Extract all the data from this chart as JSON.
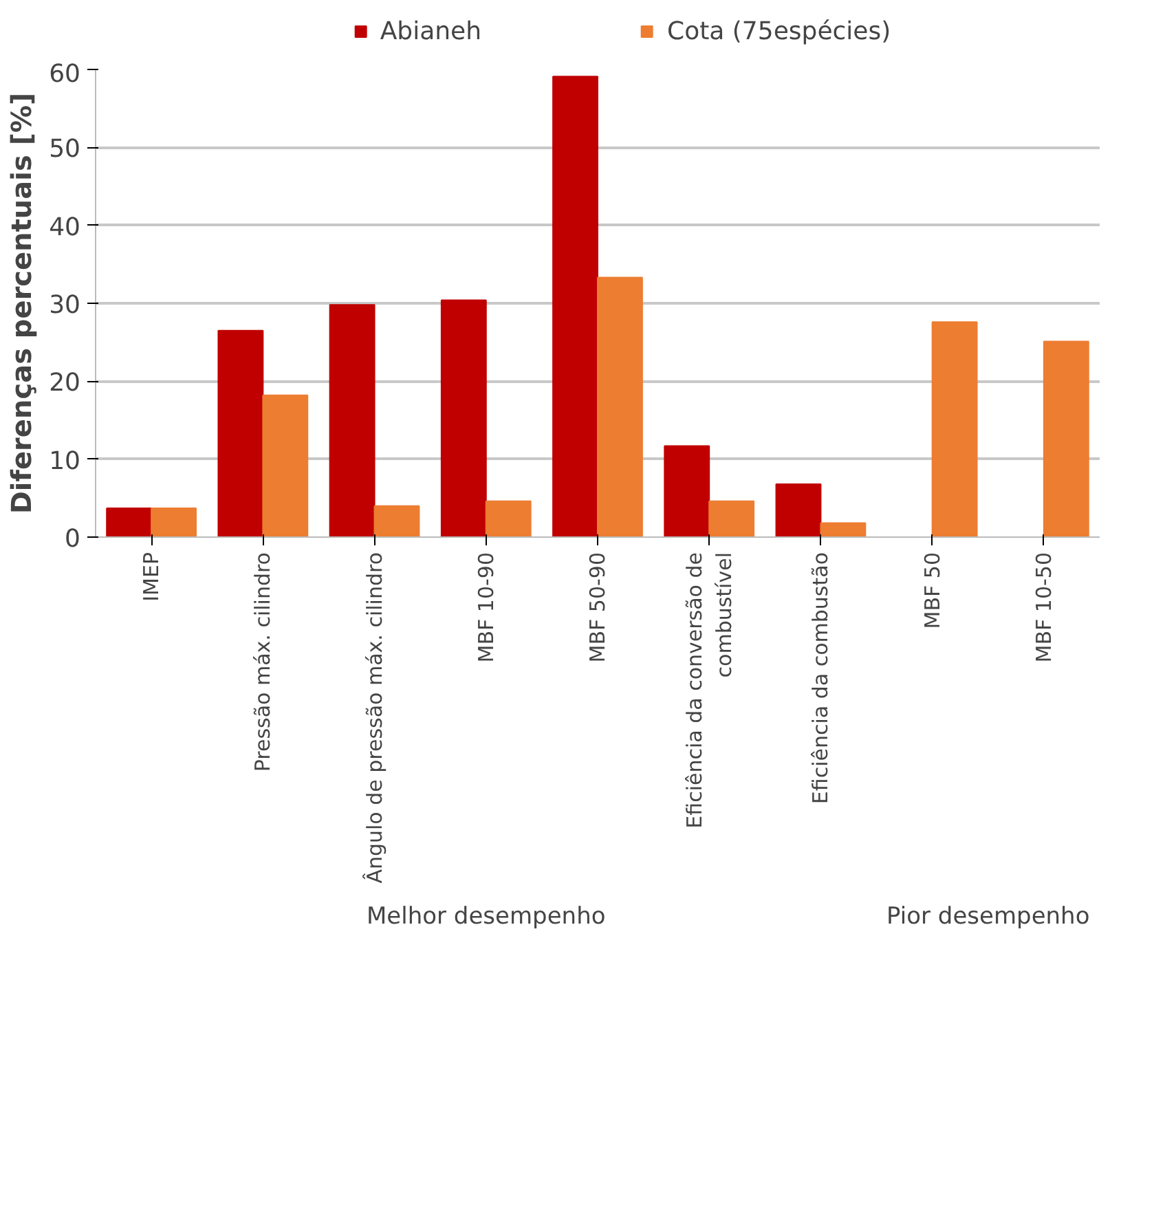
{
  "chart_data": {
    "type": "bar",
    "ylabel": "Diferenças percentuais [%]",
    "categories": [
      "IMEP",
      "Pressão máx. cilindro",
      "Ângulo de pressão máx. cilindro",
      "MBF 10-90",
      "MBF 50-90",
      "Eficiência da conversão de\ncombustível",
      "Eficiência da combustão",
      "MBF 50",
      "MBF 10-50"
    ],
    "series": [
      {
        "name": "Abianeh",
        "color": "#c00000",
        "values": [
          3.7,
          26.5,
          29.8,
          30.4,
          59.1,
          11.7,
          6.8,
          null,
          null
        ]
      },
      {
        "name": "Cota (75espécies)",
        "color": "#ed7d31",
        "values": [
          3.7,
          18.2,
          4.0,
          4.6,
          33.3,
          4.6,
          1.8,
          27.6,
          25.1
        ]
      }
    ],
    "annotations": [
      "Melhor desempenho",
      "Pior desempenho"
    ],
    "ylim": [
      0,
      60
    ],
    "yticks": [
      0,
      10,
      20,
      30,
      40,
      50,
      60
    ],
    "grid": "y",
    "legend": "top"
  }
}
